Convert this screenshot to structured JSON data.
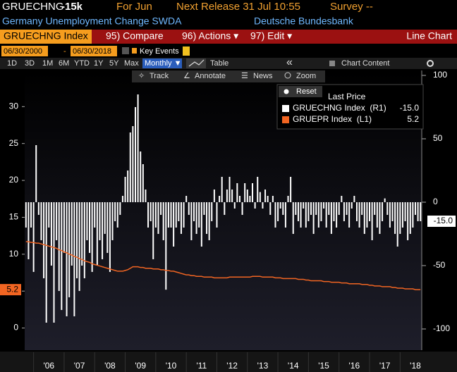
{
  "header": {
    "ticker": "GRUECHNG",
    "value": "-15k",
    "period": "For Jun",
    "next_release": "Next Release 31 Jul 10:55",
    "survey": "Survey --",
    "description": "Germany Unemployment Change SWDA",
    "source": "Deutsche Bundesbank"
  },
  "toolbar": {
    "security": "GRUECHNG Index",
    "buttons": [
      "95) Compare",
      "96) Actions ▾",
      "97) Edit ▾"
    ],
    "chart_type": "Line Chart",
    "start_date": "06/30/2000",
    "date_separator": "-",
    "end_date": "06/30/2018",
    "key_events": "Key Events",
    "ranges": [
      "1D",
      "3D",
      "1M",
      "6M",
      "YTD",
      "1Y",
      "5Y",
      "Max"
    ],
    "frequency": "Monthly ▼",
    "table": "Table",
    "chart_content": "Chart Content",
    "tools": [
      "Track",
      "Annotate",
      "News",
      "Zoom"
    ],
    "reset": "Reset"
  },
  "chart_data": {
    "type": "combo",
    "legend_title": "Last Price",
    "categories": [
      null,
      null,
      null,
      null,
      null,
      null,
      null,
      null,
      null,
      "'06",
      null,
      null,
      null,
      null,
      null,
      null,
      null,
      null,
      null,
      null,
      null,
      "'07",
      null,
      null,
      null,
      null,
      null,
      null,
      null,
      null,
      null,
      null,
      null,
      "'08",
      null,
      null,
      null,
      null,
      null,
      null,
      null,
      null,
      null,
      null,
      null,
      "'09",
      null,
      null,
      null,
      null,
      null,
      null,
      null,
      null,
      null,
      null,
      null,
      "'10",
      null,
      null,
      null,
      null,
      null,
      null,
      null,
      null,
      null,
      null,
      null,
      "'11",
      null,
      null,
      null,
      null,
      null,
      null,
      null,
      null,
      null,
      null,
      null,
      "'12",
      null,
      null,
      null,
      null,
      null,
      null,
      null,
      null,
      null,
      null,
      null,
      "'13",
      null,
      null,
      null,
      null,
      null,
      null,
      null,
      null,
      null,
      null,
      null,
      "'14",
      null,
      null,
      null,
      null,
      null,
      null,
      null,
      null,
      null,
      null,
      null,
      "'15",
      null,
      null,
      null,
      null,
      null,
      null,
      null,
      null,
      null,
      null,
      null,
      "'16",
      null,
      null,
      null,
      null,
      null,
      null,
      null,
      null,
      null,
      null,
      null,
      "'17",
      null,
      null,
      null,
      null,
      null,
      null,
      null,
      null,
      null,
      null,
      null,
      "'18",
      null,
      null
    ],
    "series": [
      {
        "name": "GRUECHNG Index  (R1)",
        "type": "bar",
        "axis": "y2",
        "color": "#ffffff",
        "last_label": "-15.0",
        "values": [
          -20,
          -45,
          -20,
          -55,
          45,
          -10,
          -30,
          -60,
          -95,
          -20,
          -50,
          -95,
          -30,
          -70,
          -85,
          -40,
          -90,
          -75,
          -50,
          -90,
          -60,
          -70,
          -50,
          -60,
          -30,
          -40,
          -55,
          -20,
          -50,
          -30,
          -45,
          -25,
          -40,
          -55,
          -30,
          -15,
          -20,
          -10,
          5,
          20,
          25,
          55,
          60,
          75,
          85,
          40,
          30,
          10,
          -20,
          -15,
          -45,
          -20,
          -25,
          -10,
          -30,
          -69,
          -20,
          -20,
          -35,
          -20,
          -15,
          -25,
          -20,
          5,
          -10,
          -30,
          -15,
          -25,
          -20,
          -35,
          -10,
          -25,
          -30,
          -15,
          10,
          -20,
          5,
          20,
          -10,
          10,
          20,
          10,
          -5,
          15,
          5,
          -10,
          15,
          10,
          5,
          15,
          -5,
          20,
          8,
          -5,
          10,
          5,
          -10,
          5,
          -20,
          -15,
          -5,
          -10,
          -20,
          5,
          20,
          -25,
          -10,
          -15,
          -20,
          -5,
          -20,
          -15,
          -10,
          -25,
          -10,
          -20,
          -15,
          -5,
          -20,
          -10,
          -25,
          -15,
          -20,
          -10,
          5,
          -15,
          -10,
          -20,
          -5,
          5,
          -15,
          -20,
          -10,
          -25,
          -20,
          -15,
          -30,
          -10,
          -20,
          -25,
          -15,
          3,
          -10,
          -20,
          -15,
          -25,
          -35,
          -25,
          -20,
          -15,
          -30,
          -25,
          -20,
          -10,
          -15,
          -15
        ]
      },
      {
        "name": "GRUEPR Index  (L1)",
        "type": "line",
        "axis": "y",
        "color": "#f26522",
        "last_label": "5.2",
        "values": [
          11.7,
          11.7,
          11.6,
          11.6,
          11.5,
          11.5,
          11.4,
          11.3,
          11.2,
          11.1,
          11.0,
          10.9,
          10.8,
          10.6,
          10.5,
          10.3,
          10.2,
          10.0,
          9.9,
          9.7,
          9.6,
          9.4,
          9.3,
          9.1,
          9.0,
          8.9,
          8.7,
          8.6,
          8.5,
          8.4,
          8.3,
          8.2,
          8.1,
          8.0,
          7.9,
          7.8,
          7.7,
          7.7,
          7.7,
          7.8,
          7.9,
          8.1,
          8.3,
          8.3,
          8.3,
          8.2,
          8.2,
          8.1,
          8.1,
          8.1,
          8.0,
          8.0,
          8.0,
          7.9,
          7.9,
          7.8,
          7.8,
          7.7,
          7.7,
          7.6,
          7.5,
          7.4,
          7.3,
          7.2,
          7.2,
          7.1,
          7.1,
          7.0,
          7.0,
          7.0,
          6.9,
          6.9,
          6.9,
          6.9,
          6.8,
          6.8,
          6.8,
          6.8,
          6.8,
          6.8,
          6.9,
          6.9,
          6.9,
          6.9,
          6.9,
          6.9,
          6.9,
          6.9,
          6.9,
          7.0,
          7.0,
          7.0,
          7.0,
          6.9,
          6.9,
          6.9,
          6.9,
          6.9,
          6.8,
          6.8,
          6.8,
          6.7,
          6.7,
          6.7,
          6.7,
          6.7,
          6.7,
          6.6,
          6.6,
          6.6,
          6.5,
          6.5,
          6.4,
          6.4,
          6.4,
          6.4,
          6.4,
          6.3,
          6.3,
          6.3,
          6.2,
          6.2,
          6.2,
          6.2,
          6.1,
          6.1,
          6.1,
          6.0,
          6.0,
          6.0,
          6.0,
          6.0,
          5.9,
          5.9,
          5.9,
          5.8,
          5.8,
          5.7,
          5.7,
          5.7,
          5.6,
          5.6,
          5.6,
          5.6,
          5.5,
          5.5,
          5.4,
          5.4,
          5.4,
          5.3,
          5.3,
          5.3,
          5.3,
          5.2,
          5.2,
          5.2
        ]
      }
    ],
    "ylim": [
      -3,
      34.9
    ],
    "yticks": [
      0,
      5,
      10,
      15,
      20,
      25,
      30
    ],
    "y2lim": [
      -116.7,
      103.9
    ],
    "y2ticks": [
      -100,
      -50,
      0,
      50,
      100
    ]
  }
}
